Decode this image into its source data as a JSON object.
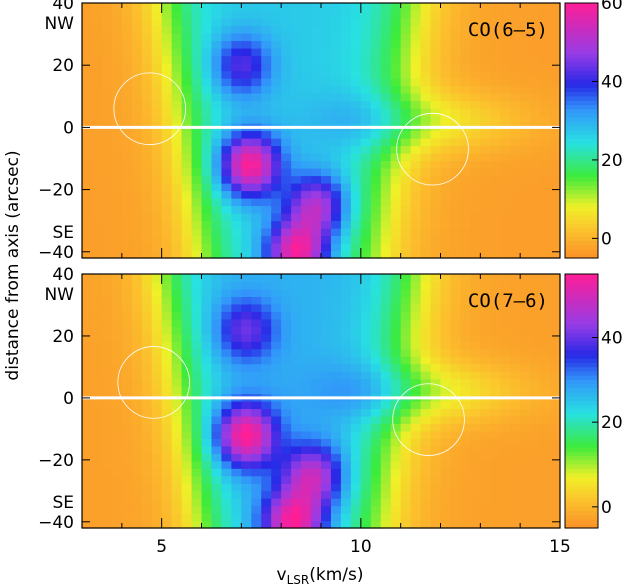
{
  "chart_data": [
    {
      "type": "heatmap",
      "title": "CO(6–5)",
      "xlabel": "",
      "ylabel": "",
      "xlim": [
        3,
        15
      ],
      "ylim": [
        -42,
        40
      ],
      "yticks": [
        "-40",
        "-20",
        "0",
        "20",
        "40"
      ],
      "y_side_labels": {
        "top": "NW",
        "bottom": "SE"
      },
      "colorbar": {
        "range": [
          -5,
          60
        ],
        "ticks": [
          "0",
          "20",
          "40",
          "60"
        ]
      },
      "peaks": [
        {
          "x": 7.2,
          "y": -12,
          "value": 58
        },
        {
          "x": 8.4,
          "y": -40,
          "value": 56
        },
        {
          "x": 8.9,
          "y": -25,
          "value": 48
        },
        {
          "x": 7.0,
          "y": 20,
          "value": 40
        }
      ],
      "circles": [
        {
          "x": 4.7,
          "y": 6,
          "r_kms": 0.9
        },
        {
          "x": 11.8,
          "y": -7,
          "r_kms": 0.9
        }
      ],
      "axis_line_y": 0,
      "grid": false
    },
    {
      "type": "heatmap",
      "title": "CO(7–6)",
      "xlabel": "v_LSR(km/s)",
      "ylabel": "distance from axis (arcsec)",
      "xlim": [
        3,
        15
      ],
      "ylim": [
        -42,
        40
      ],
      "xticks": [
        "5",
        "10",
        "15"
      ],
      "yticks": [
        "-40",
        "-20",
        "0",
        "20",
        "40"
      ],
      "y_side_labels": {
        "top": "NW",
        "bottom": "SE"
      },
      "colorbar": {
        "range": [
          -5,
          55
        ],
        "ticks": [
          "0",
          "20",
          "40"
        ]
      },
      "peaks": [
        {
          "x": 7.1,
          "y": -12,
          "value": 54
        },
        {
          "x": 8.3,
          "y": -40,
          "value": 52
        },
        {
          "x": 8.8,
          "y": -25,
          "value": 46
        },
        {
          "x": 7.1,
          "y": 22,
          "value": 38
        }
      ],
      "circles": [
        {
          "x": 4.8,
          "y": 5,
          "r_kms": 0.9
        },
        {
          "x": 11.7,
          "y": -7,
          "r_kms": 0.9
        }
      ],
      "axis_line_y": 0,
      "grid": false
    }
  ]
}
